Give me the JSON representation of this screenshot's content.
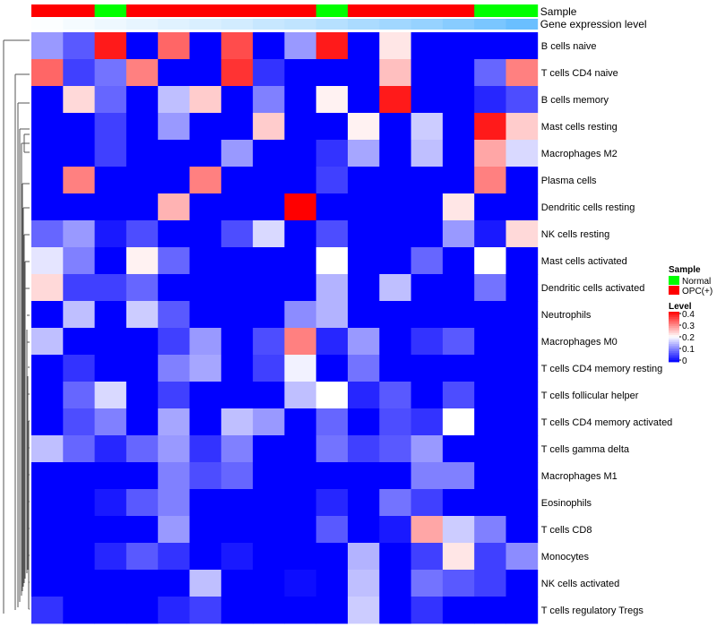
{
  "chart_data": {
    "type": "heatmap",
    "annotation_labels": [
      "Sample",
      "Gene expression level"
    ],
    "legend": {
      "sample_title": "Sample",
      "sample_entries": [
        {
          "label": "Normal",
          "color": "#00ff00"
        },
        {
          "label": "OPC(+)",
          "color": "#ff0000"
        }
      ],
      "level_title": "Level",
      "level_ticks": [
        "0.4",
        "0.3",
        "0.2",
        "0.1",
        "0"
      ],
      "level_range": [
        0,
        0.4
      ]
    },
    "colors": {
      "normal": "#00ff00",
      "opc": "#ff0000",
      "low": "#0000ff",
      "mid": "#ffffff",
      "high": "#ff0000"
    },
    "samples": [
      "OPC(+)",
      "OPC(+)",
      "Normal",
      "OPC(+)",
      "OPC(+)",
      "OPC(+)",
      "OPC(+)",
      "OPC(+)",
      "OPC(+)",
      "Normal",
      "OPC(+)",
      "OPC(+)",
      "OPC(+)",
      "OPC(+)",
      "Normal",
      "Normal"
    ],
    "gene_expression": [
      0.02,
      0.06,
      0.1,
      0.14,
      0.18,
      0.22,
      0.26,
      0.32,
      0.36,
      0.42,
      0.48,
      0.54,
      0.6,
      0.68,
      0.76,
      0.85
    ],
    "rows": [
      "B cells naive",
      "T cells CD4 naive",
      "B cells memory",
      "Mast cells resting",
      "Macrophages M2",
      "Plasma cells",
      "Dendritic cells resting",
      "NK cells resting",
      "Mast cells activated",
      "Dendritic cells activated",
      "Neutrophils",
      "Macrophages M0",
      "T cells CD4 memory resting",
      "T cells follicular helper",
      "T cells CD4 memory activated",
      "T cells gamma delta",
      "Macrophages M1",
      "Eosinophils",
      "T cells CD8",
      "Monocytes",
      "NK cells activated",
      "T cells regulatory  Tregs"
    ],
    "values": [
      [
        0.12,
        0.07,
        0.38,
        0,
        0.32,
        0,
        0.34,
        0,
        0.12,
        0.38,
        0,
        0.22,
        0,
        0,
        0,
        0
      ],
      [
        0.32,
        0.05,
        0.09,
        0.3,
        0,
        0,
        0.36,
        0.04,
        0,
        0,
        0,
        0.25,
        0,
        0,
        0.08,
        0.3
      ],
      [
        0,
        0.23,
        0.08,
        0,
        0.15,
        0.24,
        0,
        0.1,
        0,
        0.21,
        0,
        0.38,
        0,
        0,
        0.03,
        0.06
      ],
      [
        0,
        0,
        0.05,
        0,
        0.12,
        0,
        0,
        0.24,
        0,
        0,
        0.21,
        0,
        0.16,
        0,
        0.38,
        0.24
      ],
      [
        0,
        0,
        0.05,
        0,
        0,
        0,
        0.12,
        0,
        0,
        0.04,
        0.13,
        0,
        0.15,
        0,
        0.27,
        0.17
      ],
      [
        0,
        0.3,
        0,
        0,
        0,
        0.3,
        0,
        0,
        0,
        0.05,
        0,
        0,
        0,
        0,
        0.3,
        0
      ],
      [
        0,
        0,
        0,
        0,
        0.26,
        0,
        0,
        0,
        0.4,
        0,
        0,
        0,
        0,
        0.22,
        0,
        0
      ],
      [
        0.08,
        0.12,
        0.02,
        0.06,
        0,
        0,
        0.06,
        0.17,
        0,
        0.06,
        0,
        0,
        0,
        0.12,
        0.02,
        0.23
      ],
      [
        0.18,
        0.1,
        0,
        0.21,
        0.08,
        0,
        0,
        0,
        0,
        0.2,
        0,
        0,
        0.08,
        0,
        0.2,
        0
      ],
      [
        0.23,
        0.05,
        0.05,
        0.08,
        0,
        0,
        0,
        0,
        0,
        0.14,
        0,
        0.15,
        0,
        0,
        0.09,
        0
      ],
      [
        0,
        0.15,
        0,
        0.16,
        0.07,
        0,
        0,
        0,
        0.11,
        0.14,
        0,
        0,
        0,
        0,
        0,
        0
      ],
      [
        0.15,
        0,
        0,
        0,
        0.05,
        0.12,
        0,
        0.06,
        0.3,
        0.03,
        0.12,
        0,
        0.04,
        0.07,
        0,
        0
      ],
      [
        0,
        0.04,
        0,
        0,
        0.1,
        0.13,
        0,
        0.05,
        0.19,
        0,
        0.09,
        0,
        0,
        0,
        0,
        0
      ],
      [
        0,
        0.08,
        0.17,
        0,
        0.05,
        0,
        0,
        0,
        0.15,
        0.2,
        0.03,
        0.07,
        0,
        0.06,
        0,
        0
      ],
      [
        0,
        0.06,
        0.1,
        0,
        0.13,
        0,
        0.15,
        0.12,
        0,
        0.08,
        0,
        0.06,
        0.04,
        0.2,
        0,
        0
      ],
      [
        0.15,
        0.08,
        0.03,
        0.08,
        0.12,
        0.04,
        0.1,
        0,
        0,
        0.09,
        0.05,
        0.07,
        0.12,
        0,
        0,
        0
      ],
      [
        0,
        0,
        0,
        0,
        0.1,
        0.06,
        0.08,
        0,
        0,
        0,
        0,
        0,
        0.1,
        0.1,
        0,
        0
      ],
      [
        0,
        0,
        0.02,
        0.07,
        0.1,
        0,
        0,
        0,
        0,
        0.03,
        0,
        0.09,
        0.05,
        0,
        0,
        0
      ],
      [
        0,
        0,
        0,
        0,
        0.12,
        0,
        0,
        0,
        0,
        0.07,
        0,
        0.02,
        0.27,
        0.16,
        0.1,
        0
      ],
      [
        0,
        0,
        0.03,
        0.07,
        0.04,
        0,
        0.02,
        0,
        0,
        0,
        0.14,
        0,
        0.05,
        0.22,
        0.05,
        0.11
      ],
      [
        0,
        0,
        0,
        0,
        0,
        0.15,
        0,
        0,
        0.01,
        0,
        0.15,
        0,
        0.09,
        0.07,
        0.05,
        0
      ],
      [
        0.04,
        0,
        0,
        0,
        0.03,
        0.05,
        0,
        0,
        0,
        0,
        0.16,
        0,
        0.04,
        0,
        0,
        0
      ]
    ]
  }
}
